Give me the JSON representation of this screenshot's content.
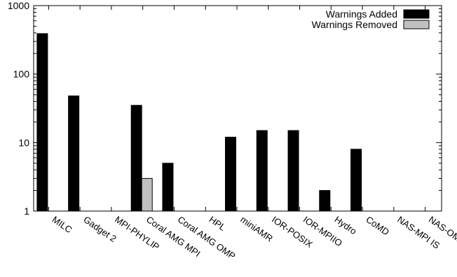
{
  "chart_data": {
    "type": "bar",
    "scale": "log",
    "ylim": [
      1,
      1000
    ],
    "yticks": [
      {
        "value": 1,
        "label": "1"
      },
      {
        "value": 10,
        "label": "10"
      },
      {
        "value": 100,
        "label": "100"
      },
      {
        "value": 1000,
        "label": "1000"
      }
    ],
    "categories": [
      "MILC",
      "Gadget 2",
      "MPI-PHYLIP",
      "Coral AMG MPI",
      "Coral AMG OMP",
      "HPL",
      "miniAMR",
      "IOR-POSIX",
      "IOR-MPIIO",
      "Hydro",
      "CoMD",
      "NAS-MPI IS",
      "NAS-OMP IS"
    ],
    "series": [
      {
        "name": "Warnings Added",
        "color": "#000000",
        "values": [
          390,
          48,
          null,
          35,
          5,
          null,
          12,
          15,
          15,
          2,
          8,
          null,
          null
        ]
      },
      {
        "name": "Warnings Removed",
        "color": "#c0c0c0",
        "values": [
          null,
          null,
          null,
          3,
          null,
          null,
          null,
          null,
          null,
          null,
          null,
          null,
          null
        ]
      }
    ],
    "legend_position": "top-right",
    "grid": false,
    "title": "",
    "xlabel": "",
    "ylabel": ""
  }
}
